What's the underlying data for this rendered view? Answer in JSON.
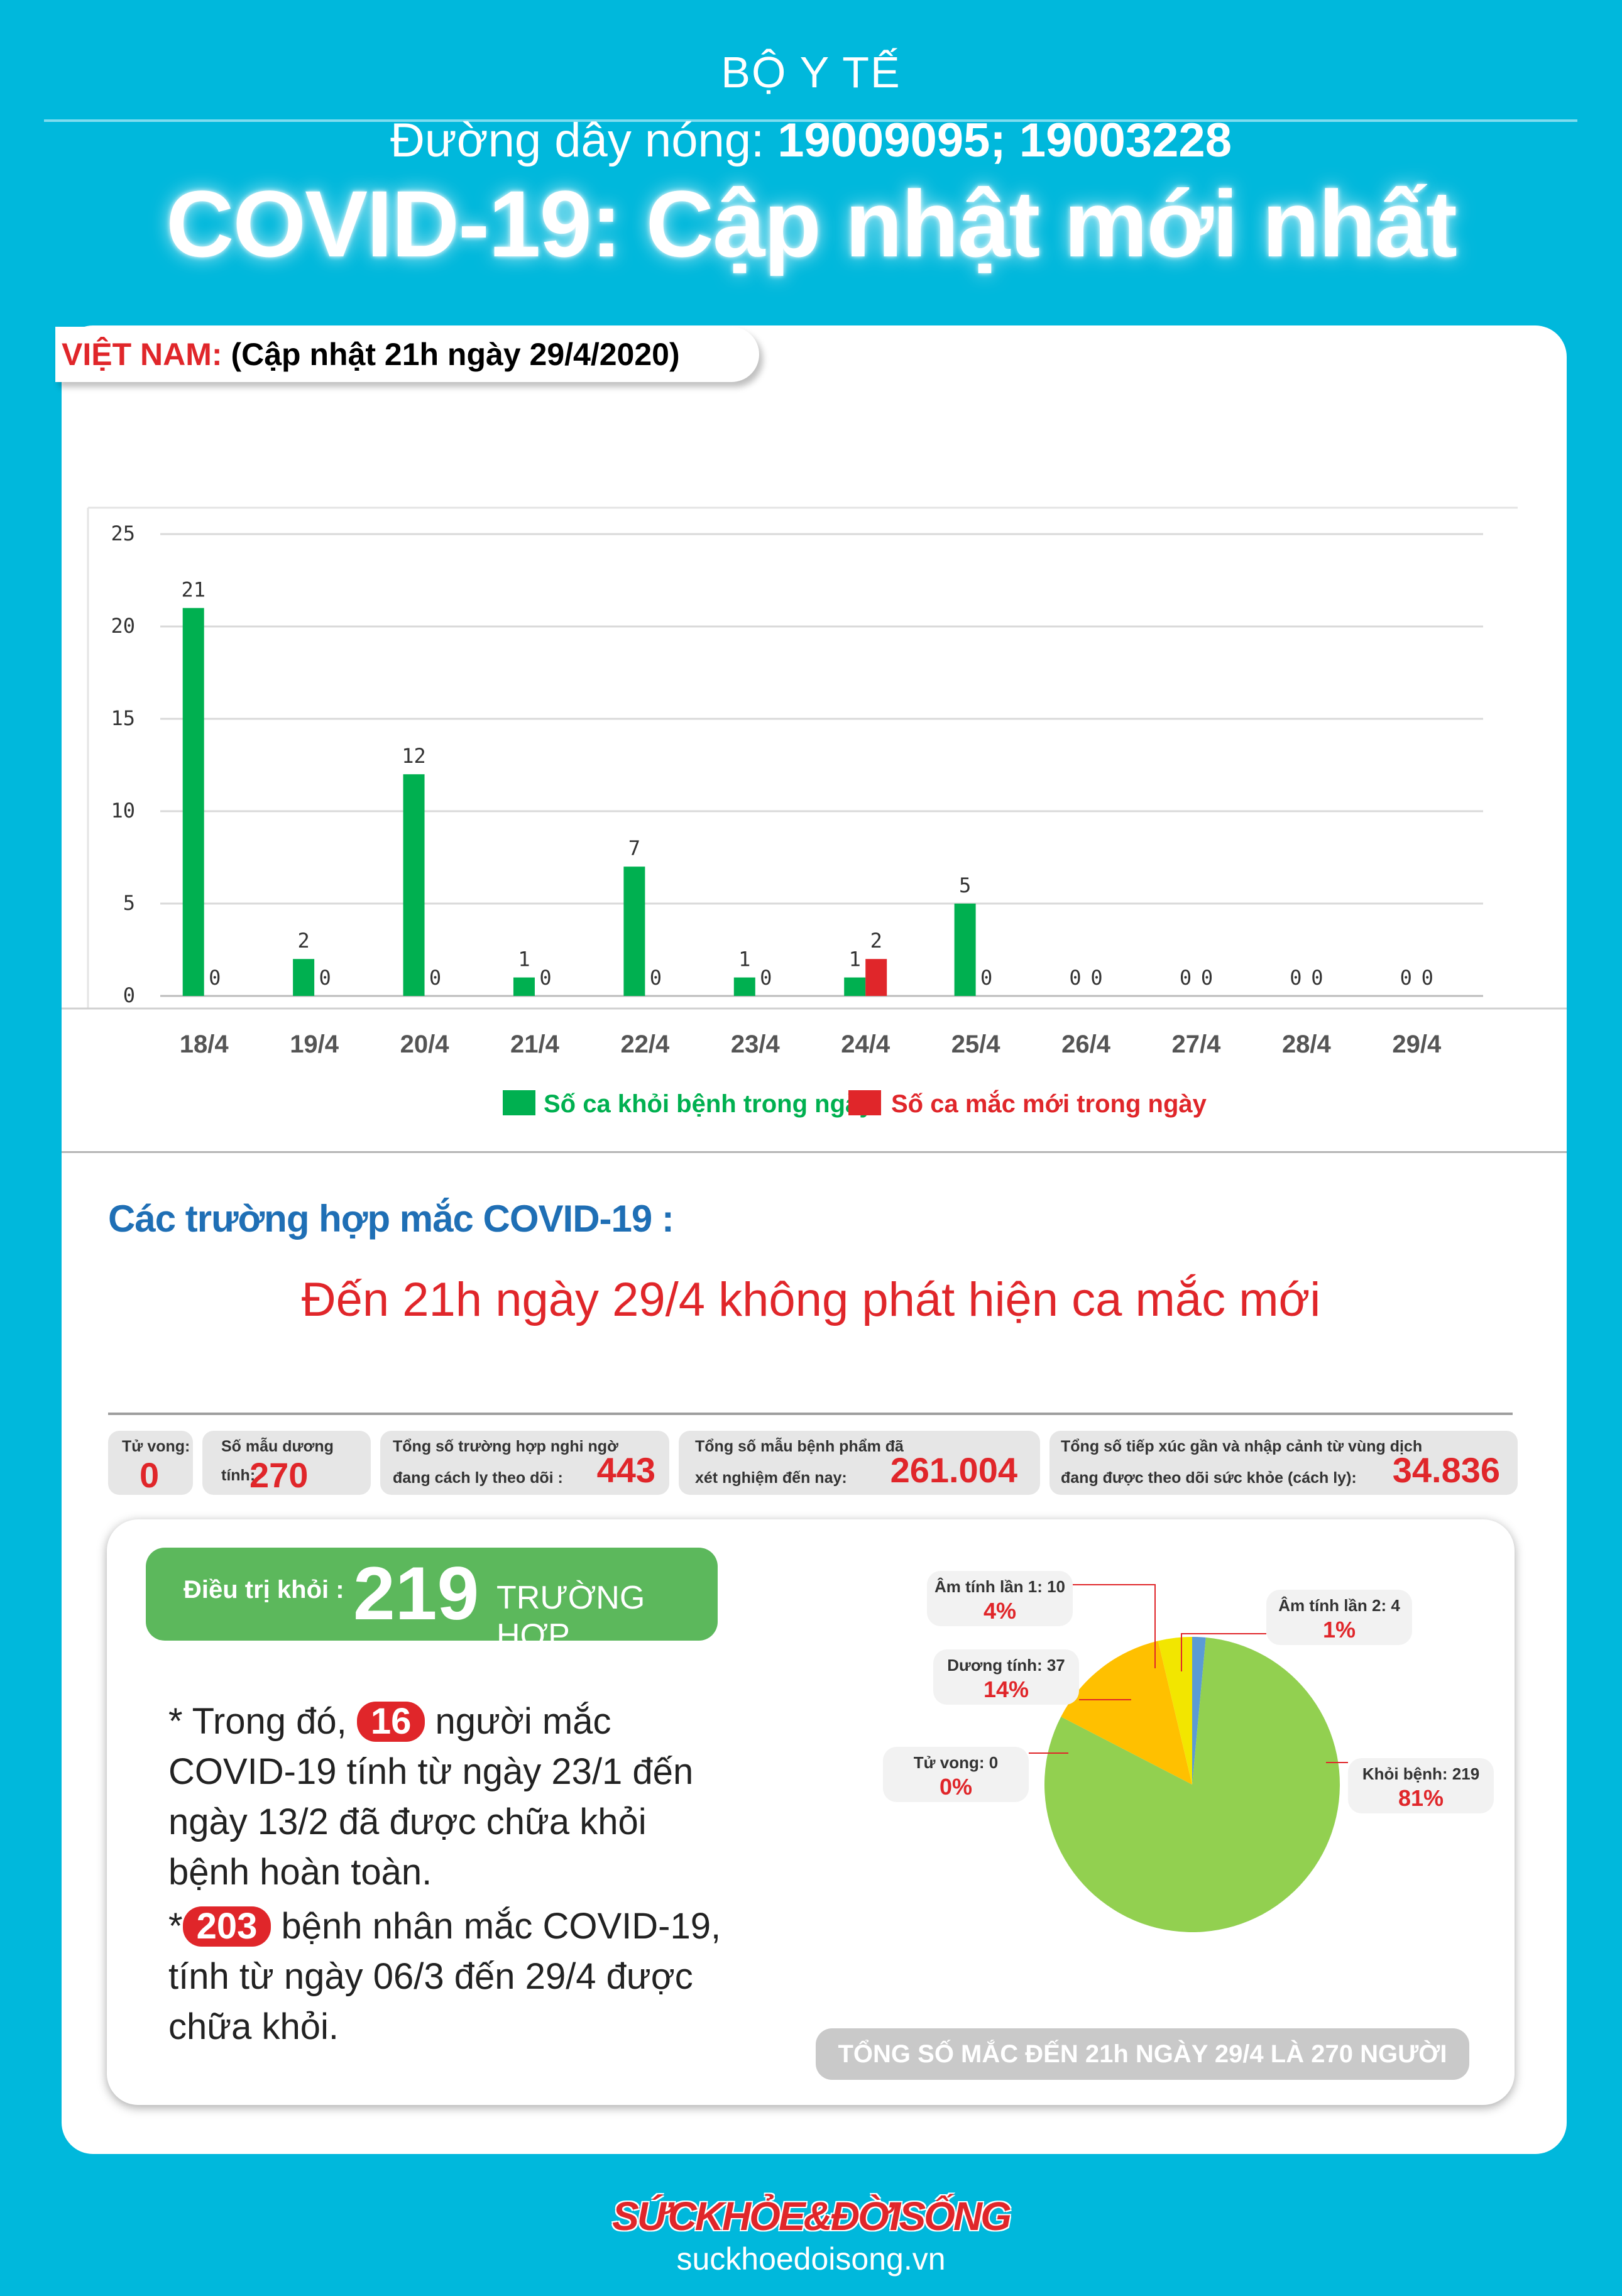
{
  "header": {
    "ministry": "BỘ Y TẾ",
    "hotline_label": "Đường dây nóng:",
    "hotline_numbers": "19009095; 19003228",
    "title": "COVID-19: Cập nhật mới nhất"
  },
  "tab": {
    "country": "VIỆT NAM:",
    "updated": "(Cập nhật 21h ngày 29/4/2020)"
  },
  "chart_data": [
    {
      "type": "bar",
      "categories": [
        "18/4",
        "19/4",
        "20/4",
        "21/4",
        "22/4",
        "23/4",
        "24/4",
        "25/4",
        "26/4",
        "27/4",
        "28/4",
        "29/4"
      ],
      "series": [
        {
          "name": "Số ca khỏi bệnh trong ngày",
          "color": "#00b050",
          "values": [
            21,
            2,
            12,
            1,
            7,
            1,
            1,
            5,
            0,
            0,
            0,
            0
          ]
        },
        {
          "name": "Số ca mắc mới  trong ngày",
          "color": "#e0262a",
          "values": [
            0,
            0,
            0,
            0,
            0,
            0,
            2,
            0,
            0,
            0,
            0,
            0
          ]
        }
      ],
      "ylim": [
        0,
        25
      ],
      "yticks": [
        0,
        5,
        10,
        15,
        20,
        25
      ],
      "grid": true,
      "legend": "bottom"
    },
    {
      "type": "pie",
      "slices": [
        {
          "label": "Khỏi bệnh: 219",
          "value": 219,
          "percent": "81%",
          "color": "#92d050"
        },
        {
          "label": "Tử vong: 0",
          "value": 0,
          "percent": "0%",
          "color": "#7f7f7f"
        },
        {
          "label": "Dương tính: 37",
          "value": 37,
          "percent": "14%",
          "color": "#ffc000"
        },
        {
          "label": "Âm tính lần 1: 10",
          "value": 10,
          "percent": "4%",
          "color": "#f2e600"
        },
        {
          "label": "Âm tính lần 2: 4",
          "value": 4,
          "percent": "1%",
          "color": "#5b9bd5"
        }
      ]
    }
  ],
  "cases": {
    "heading": "Các trường hợp mắc COVID-19 :",
    "no_new": "Đến 21h ngày 29/4 không phát hiện ca mắc mới"
  },
  "stats": {
    "deaths_label": "Tử vong:",
    "deaths_value": "0",
    "positive_label": "Số mẫu dương tính:",
    "positive_value": "270",
    "suspect_label_1": "Tổng số trường hợp nghi ngờ",
    "suspect_label_2": "đang cách ly theo dõi :",
    "suspect_value": "443",
    "tested_label_1": "Tổng số mẫu bệnh phẩm đã",
    "tested_label_2": "xét nghiệm đến nay:",
    "tested_value": "261.004",
    "contacts_label_1": "Tổng số tiếp xúc gần và nhập cảnh từ vùng dịch",
    "contacts_label_2": "đang được theo dõi sức khỏe (cách ly):",
    "contacts_value": "34.836"
  },
  "recovery": {
    "label": "Điều trị khỏi :",
    "value": "219",
    "unit": "TRƯỜNG HỢP",
    "note1_pre": "* Trong đó,",
    "note1_num": "16",
    "note1_post": "người mắc COVID-19 tính từ ngày 23/1 đến ngày 13/2 đã được chữa khỏi bệnh hoàn toàn.",
    "note2_pre": "*",
    "note2_num": "203",
    "note2_post": "bệnh nhân  mắc COVID-19, tính từ ngày 06/3 đến 29/4 được chữa khỏi.",
    "total": "TỔNG SỐ MẮC ĐẾN 21h NGÀY 29/4 LÀ 270 NGƯỜI"
  },
  "footer": {
    "brand": "SỨCKHỎE&ĐỜISỐNG",
    "site": "suckhoedoisong.vn"
  }
}
